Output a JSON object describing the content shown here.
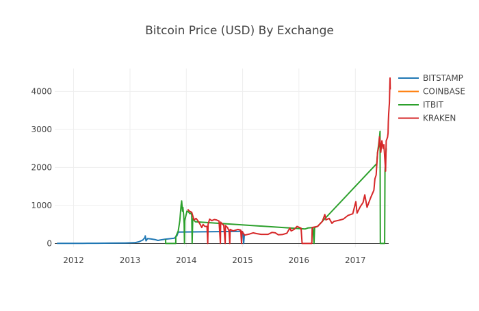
{
  "chart_data": {
    "type": "line",
    "title": "Bitcoin Price (USD) By Exchange",
    "xlabel": "",
    "ylabel": "",
    "xlim": [
      "2011-09-01",
      "2017-08-05"
    ],
    "ylim": [
      -100,
      4600
    ],
    "x_ticks": [
      "2012",
      "2013",
      "2014",
      "2015",
      "2016",
      "2017"
    ],
    "y_ticks": [
      0,
      1000,
      2000,
      3000,
      4000
    ],
    "grid": true,
    "legend_position": "right",
    "series": [
      {
        "name": "BITSTAMP",
        "color": "#1f77b4",
        "points": [
          [
            "2011-09-15",
            5
          ],
          [
            "2011-12-01",
            3
          ],
          [
            "2012-03-01",
            5
          ],
          [
            "2012-06-01",
            6
          ],
          [
            "2012-09-01",
            10
          ],
          [
            "2012-12-01",
            13
          ],
          [
            "2013-02-01",
            20
          ],
          [
            "2013-03-01",
            45
          ],
          [
            "2013-03-25",
            90
          ],
          [
            "2013-04-08",
            160
          ],
          [
            "2013-04-10",
            200
          ],
          [
            "2013-04-15",
            70
          ],
          [
            "2013-04-25",
            130
          ],
          [
            "2013-05-15",
            120
          ],
          [
            "2013-06-15",
            100
          ],
          [
            "2013-07-01",
            80
          ],
          [
            "2013-07-15",
            90
          ],
          [
            "2013-08-15",
            110
          ],
          [
            "2013-09-15",
            125
          ],
          [
            "2013-10-15",
            140
          ],
          [
            "2013-11-01",
            200
          ],
          [
            "2013-11-10",
            300
          ],
          [
            "2014-12-25",
            320
          ],
          [
            "2015-01-01",
            310
          ],
          [
            "2015-01-05",
            200
          ],
          [
            "2015-01-08",
            0
          ],
          [
            "2015-01-12",
            210
          ],
          [
            "2015-01-16",
            220
          ]
        ]
      },
      {
        "name": "COINBASE",
        "color": "#ff7f0e",
        "points": []
      },
      {
        "name": "ITBIT",
        "color": "#2ca02c",
        "points": [
          [
            "2013-08-20",
            110
          ],
          [
            "2013-08-20",
            0
          ],
          [
            "2013-10-25",
            0
          ],
          [
            "2013-10-25",
            180
          ],
          [
            "2013-11-10",
            330
          ],
          [
            "2013-11-20",
            600
          ],
          [
            "2013-11-28",
            1000
          ],
          [
            "2013-12-02",
            1120
          ],
          [
            "2013-12-07",
            850
          ],
          [
            "2013-12-10",
            950
          ],
          [
            "2013-12-15",
            750
          ],
          [
            "2013-12-18",
            520
          ],
          [
            "2013-12-20",
            0
          ],
          [
            "2013-12-22",
            600
          ],
          [
            "2014-01-05",
            850
          ],
          [
            "2014-01-15",
            830
          ],
          [
            "2014-01-25",
            780
          ],
          [
            "2014-02-01",
            800
          ],
          [
            "2014-02-05",
            750
          ],
          [
            "2014-02-08",
            0
          ],
          [
            "2014-02-12",
            650
          ],
          [
            "2014-03-01",
            570
          ],
          [
            "2016-02-10",
            380
          ],
          [
            "2016-03-01",
            410
          ],
          [
            "2016-04-01",
            420
          ],
          [
            "2016-04-08",
            0
          ],
          [
            "2016-04-12",
            420
          ],
          [
            "2016-05-01",
            450
          ],
          [
            "2017-05-20",
            2100
          ],
          [
            "2017-05-25",
            2400
          ],
          [
            "2017-06-01",
            2600
          ],
          [
            "2017-06-08",
            2850
          ],
          [
            "2017-06-10",
            2950
          ],
          [
            "2017-06-12",
            0
          ],
          [
            "2017-07-10",
            0
          ],
          [
            "2017-07-12",
            1900
          ],
          [
            "2017-07-20",
            2500
          ]
        ]
      },
      {
        "name": "KRAKEN",
        "color": "#d62728",
        "points": [
          [
            "2014-01-10",
            900
          ],
          [
            "2014-01-20",
            850
          ],
          [
            "2014-02-05",
            820
          ],
          [
            "2014-02-20",
            620
          ],
          [
            "2014-03-05",
            660
          ],
          [
            "2014-03-20",
            580
          ],
          [
            "2014-04-01",
            500
          ],
          [
            "2014-04-11",
            420
          ],
          [
            "2014-04-20",
            500
          ],
          [
            "2014-05-01",
            450
          ],
          [
            "2014-05-15",
            450
          ],
          [
            "2014-05-20",
            0
          ],
          [
            "2014-05-22",
            500
          ],
          [
            "2014-06-01",
            640
          ],
          [
            "2014-06-15",
            600
          ],
          [
            "2014-07-01",
            630
          ],
          [
            "2014-07-15",
            620
          ],
          [
            "2014-08-01",
            590
          ],
          [
            "2014-08-10",
            0
          ],
          [
            "2014-08-12",
            560
          ],
          [
            "2014-08-20",
            520
          ],
          [
            "2014-09-01",
            480
          ],
          [
            "2014-09-10",
            0
          ],
          [
            "2014-09-12",
            470
          ],
          [
            "2014-09-25",
            420
          ],
          [
            "2014-10-05",
            330
          ],
          [
            "2014-10-10",
            0
          ],
          [
            "2014-10-12",
            370
          ],
          [
            "2014-11-01",
            330
          ],
          [
            "2014-12-01",
            370
          ],
          [
            "2014-12-20",
            350
          ],
          [
            "2014-12-25",
            0
          ],
          [
            "2014-12-28",
            320
          ],
          [
            "2015-01-14",
            220
          ],
          [
            "2015-02-15",
            250
          ],
          [
            "2015-03-10",
            280
          ],
          [
            "2015-04-01",
            260
          ],
          [
            "2015-05-01",
            240
          ],
          [
            "2015-06-15",
            240
          ],
          [
            "2015-07-10",
            290
          ],
          [
            "2015-08-01",
            280
          ],
          [
            "2015-08-20",
            230
          ],
          [
            "2015-09-15",
            235
          ],
          [
            "2015-10-15",
            270
          ],
          [
            "2015-11-04",
            410
          ],
          [
            "2015-11-12",
            330
          ],
          [
            "2015-12-01",
            370
          ],
          [
            "2015-12-20",
            450
          ],
          [
            "2016-01-15",
            400
          ],
          [
            "2016-01-22",
            0
          ],
          [
            "2016-03-25",
            0
          ],
          [
            "2016-03-27",
            420
          ],
          [
            "2016-05-01",
            450
          ],
          [
            "2016-06-01",
            580
          ],
          [
            "2016-06-17",
            760
          ],
          [
            "2016-06-24",
            620
          ],
          [
            "2016-07-15",
            660
          ],
          [
            "2016-08-02",
            530
          ],
          [
            "2016-08-15",
            580
          ],
          [
            "2016-09-15",
            610
          ],
          [
            "2016-10-15",
            640
          ],
          [
            "2016-11-15",
            740
          ],
          [
            "2016-12-15",
            780
          ],
          [
            "2017-01-04",
            1100
          ],
          [
            "2017-01-12",
            800
          ],
          [
            "2017-02-01",
            960
          ],
          [
            "2017-02-20",
            1080
          ],
          [
            "2017-03-03",
            1280
          ],
          [
            "2017-03-18",
            950
          ],
          [
            "2017-04-10",
            1200
          ],
          [
            "2017-05-01",
            1400
          ],
          [
            "2017-05-08",
            1700
          ],
          [
            "2017-05-16",
            1800
          ],
          [
            "2017-05-25",
            2400
          ],
          [
            "2017-06-02",
            2550
          ],
          [
            "2017-06-06",
            2800
          ],
          [
            "2017-06-10",
            2700
          ],
          [
            "2017-06-12",
            2600
          ],
          [
            "2017-06-15",
            2400
          ],
          [
            "2017-06-22",
            2700
          ],
          [
            "2017-06-30",
            2500
          ],
          [
            "2017-07-05",
            2600
          ],
          [
            "2017-07-16",
            1900
          ],
          [
            "2017-07-20",
            2700
          ],
          [
            "2017-07-25",
            2750
          ],
          [
            "2017-07-29",
            2800
          ],
          [
            "2017-08-01",
            2900
          ],
          [
            "2017-08-03",
            3200
          ],
          [
            "2017-08-05",
            3400
          ],
          [
            "2017-08-08",
            3600
          ],
          [
            "2017-08-10",
            3700
          ],
          [
            "2017-08-12",
            4100
          ],
          [
            "2017-08-14",
            4350
          ],
          [
            "2017-08-15",
            4050
          ]
        ]
      }
    ]
  }
}
